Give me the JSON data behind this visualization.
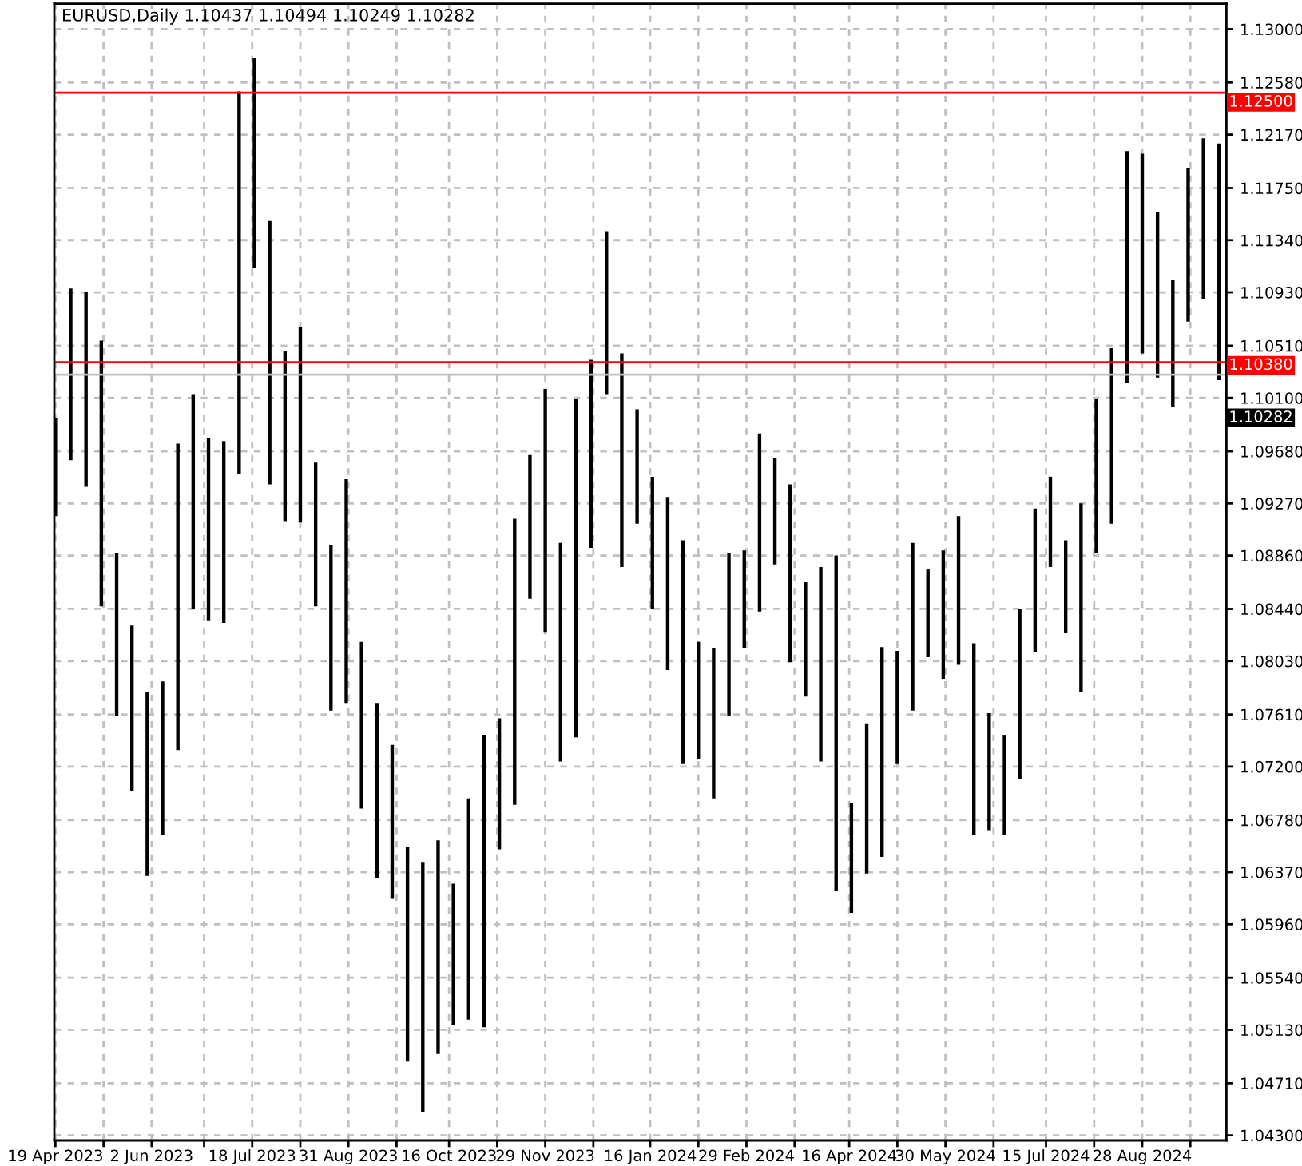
{
  "chart_data": {
    "type": "bar",
    "title": "EURUSD,Daily 1.10437 1.10494 1.10249 1.10282",
    "x": [
      "2023-04-19",
      "2023-04-26",
      "2023-05-03",
      "2023-05-10",
      "2023-05-17",
      "2023-05-24",
      "2023-05-31",
      "2023-06-07",
      "2023-06-14",
      "2023-06-21",
      "2023-06-28",
      "2023-07-05",
      "2023-07-12",
      "2023-07-19",
      "2023-07-26",
      "2023-08-02",
      "2023-08-09",
      "2023-08-16",
      "2023-08-23",
      "2023-08-30",
      "2023-09-06",
      "2023-09-13",
      "2023-09-20",
      "2023-09-27",
      "2023-10-04",
      "2023-10-11",
      "2023-10-18",
      "2023-10-25",
      "2023-11-01",
      "2023-11-08",
      "2023-11-15",
      "2023-11-22",
      "2023-11-29",
      "2023-12-06",
      "2023-12-13",
      "2023-12-20",
      "2023-12-27",
      "2024-01-03",
      "2024-01-10",
      "2024-01-17",
      "2024-01-24",
      "2024-01-31",
      "2024-02-07",
      "2024-02-14",
      "2024-02-21",
      "2024-02-28",
      "2024-03-06",
      "2024-03-13",
      "2024-03-20",
      "2024-03-27",
      "2024-04-03",
      "2024-04-10",
      "2024-04-17",
      "2024-04-24",
      "2024-05-01",
      "2024-05-08",
      "2024-05-15",
      "2024-05-22",
      "2024-05-29",
      "2024-06-05",
      "2024-06-12",
      "2024-06-19",
      "2024-06-26",
      "2024-07-03",
      "2024-07-10",
      "2024-07-17",
      "2024-07-24",
      "2024-07-31",
      "2024-08-07",
      "2024-08-14",
      "2024-08-21",
      "2024-08-28",
      "2024-09-04",
      "2024-09-11",
      "2024-09-18",
      "2024-09-25",
      "2024-10-02"
    ],
    "base": [
      1.0917,
      1.0961,
      1.094,
      1.0846,
      1.076,
      1.0701,
      1.0634,
      1.0666,
      1.0733,
      1.0844,
      1.0835,
      1.0833,
      1.095,
      1.1112,
      1.0942,
      1.0913,
      1.0912,
      1.0846,
      1.0764,
      1.077,
      1.0687,
      1.0632,
      1.0616,
      1.0488,
      1.0448,
      1.0494,
      1.0517,
      1.0521,
      1.0515,
      1.0655,
      1.069,
      1.0852,
      1.0826,
      1.0724,
      1.0743,
      1.0892,
      1.1013,
      1.0877,
      1.0911,
      1.0844,
      1.0796,
      1.0722,
      1.0726,
      1.0695,
      1.076,
      1.0813,
      1.0842,
      1.0879,
      1.0802,
      1.0775,
      1.0724,
      1.0622,
      1.0605,
      1.0636,
      1.0649,
      1.0722,
      1.0764,
      1.0806,
      1.0789,
      1.08,
      1.0666,
      1.067,
      1.0666,
      1.071,
      1.081,
      1.0877,
      1.0825,
      1.0779,
      1.0888,
      1.0911,
      1.1022,
      1.1045,
      1.1026,
      1.1003,
      1.107,
      1.1088,
      1.1024
    ],
    "values": [
      0.0077,
      0.0135,
      0.0153,
      0.0209,
      0.0128,
      0.013,
      0.0145,
      0.0121,
      0.0241,
      0.0169,
      0.0143,
      0.0143,
      0.0301,
      0.0165,
      0.0207,
      0.0134,
      0.0154,
      0.0113,
      0.013,
      0.0176,
      0.0131,
      0.0138,
      0.0121,
      0.0169,
      0.0197,
      0.0168,
      0.0111,
      0.0174,
      0.023,
      0.0103,
      0.0225,
      0.0113,
      0.0191,
      0.0172,
      0.0266,
      0.0148,
      0.0128,
      0.0168,
      0.009,
      0.0104,
      0.0136,
      0.0176,
      0.0092,
      0.0118,
      0.0128,
      0.0077,
      0.014,
      0.0084,
      0.014,
      0.009,
      0.0153,
      0.0264,
      0.0086,
      0.0118,
      0.0165,
      0.0089,
      0.0132,
      0.0069,
      0.0101,
      0.0117,
      0.0151,
      0.0092,
      0.0079,
      0.0134,
      0.0113,
      0.0071,
      0.0073,
      0.0148,
      0.0121,
      0.0138,
      0.0182,
      0.0157,
      0.013,
      0.01,
      0.0121,
      0.0126,
      0.0186
    ],
    "color": "#000000",
    "xlim": [
      "2023-04-18T12:00",
      "2024-10-05T12:00"
    ],
    "xticks": [
      {
        "value": "2023-04-19",
        "label": "19 Apr 2023"
      },
      {
        "value": "2023-05-11",
        "label": null
      },
      {
        "value": "2023-06-02",
        "label": "2 Jun 2023"
      },
      {
        "value": "2023-06-26",
        "label": null
      },
      {
        "value": "2023-07-18",
        "label": "18 Jul 2023"
      },
      {
        "value": "2023-08-09",
        "label": null
      },
      {
        "value": "2023-08-31",
        "label": "31 Aug 2023"
      },
      {
        "value": "2023-09-22",
        "label": null
      },
      {
        "value": "2023-10-16",
        "label": "16 Oct 2023"
      },
      {
        "value": "2023-11-07",
        "label": null
      },
      {
        "value": "2023-11-29",
        "label": "29 Nov 2023"
      },
      {
        "value": "2023-12-21",
        "label": null
      },
      {
        "value": "2024-01-16",
        "label": "16 Jan 2024"
      },
      {
        "value": "2024-02-07",
        "label": null
      },
      {
        "value": "2024-02-29",
        "label": "29 Feb 2024"
      },
      {
        "value": "2024-03-22",
        "label": null
      },
      {
        "value": "2024-04-16",
        "label": "16 Apr 2024"
      },
      {
        "value": "2024-05-08",
        "label": null
      },
      {
        "value": "2024-05-30",
        "label": "30 May 2024"
      },
      {
        "value": "2024-06-21",
        "label": null
      },
      {
        "value": "2024-07-15",
        "label": "15 Jul 2024"
      },
      {
        "value": "2024-08-06",
        "label": null
      },
      {
        "value": "2024-08-28",
        "label": "28 Aug 2024"
      },
      {
        "value": "2024-09-19",
        "label": null
      }
    ],
    "ylim": [
      1.0426,
      1.132
    ],
    "yticks": [
      {
        "value": 1.13,
        "label": "1.13000"
      },
      {
        "value": 1.1258,
        "label": "1.12580"
      },
      {
        "value": 1.1217,
        "label": "1.12170"
      },
      {
        "value": 1.1175,
        "label": "1.11750"
      },
      {
        "value": 1.1134,
        "label": "1.11340"
      },
      {
        "value": 1.1093,
        "label": "1.10930"
      },
      {
        "value": 1.1051,
        "label": "1.10510"
      },
      {
        "value": 1.101,
        "label": "1.10100"
      },
      {
        "value": 1.0968,
        "label": "1.09680"
      },
      {
        "value": 1.0927,
        "label": "1.09270"
      },
      {
        "value": 1.0886,
        "label": "1.08860"
      },
      {
        "value": 1.0844,
        "label": "1.08440"
      },
      {
        "value": 1.0803,
        "label": "1.08030"
      },
      {
        "value": 1.0761,
        "label": "1.07610"
      },
      {
        "value": 1.072,
        "label": "1.07200"
      },
      {
        "value": 1.0678,
        "label": "1.06780"
      },
      {
        "value": 1.0637,
        "label": "1.06370"
      },
      {
        "value": 1.0596,
        "label": "1.05960"
      },
      {
        "value": 1.0554,
        "label": "1.05540"
      },
      {
        "value": 1.0513,
        "label": "1.05130"
      },
      {
        "value": 1.0471,
        "label": "1.04710"
      },
      {
        "value": 1.043,
        "label": "1.04300"
      }
    ],
    "grid": true,
    "ref_lines": [
      {
        "axis": "y",
        "value": 1.125,
        "label": "1.12500",
        "color": "#ff0000"
      },
      {
        "axis": "y",
        "value": 1.1038,
        "label": "1.10380",
        "color": "#ff0000"
      },
      {
        "axis": "y",
        "value": 1.10282,
        "label": "1.10282",
        "color": "#c0c0c0"
      }
    ]
  }
}
